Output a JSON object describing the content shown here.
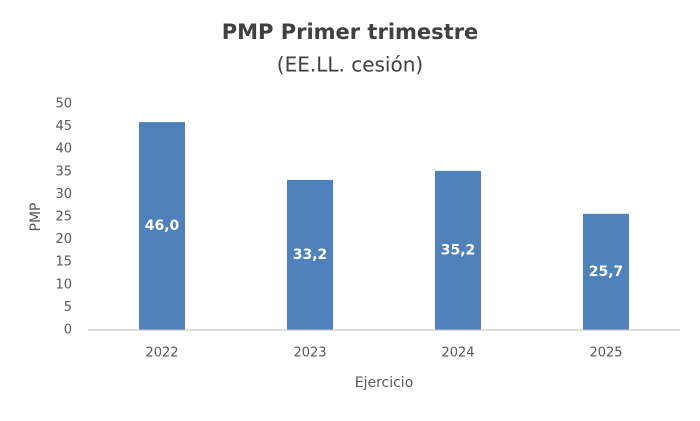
{
  "chart_data": {
    "type": "bar",
    "title": "PMP Primer trimestre",
    "subtitle": "(EE.LL. cesión)",
    "x_label": "Ejercicio",
    "y_label": "PMP",
    "categories": [
      "2022",
      "2023",
      "2024",
      "2025"
    ],
    "values": [
      46.0,
      33.2,
      35.2,
      25.7
    ],
    "value_labels": [
      "46,0",
      "33,2",
      "35,2",
      "25,7"
    ],
    "color": "#4f81bd",
    "ylim": [
      0,
      50
    ],
    "yticks": [
      0,
      5,
      10,
      15,
      20,
      25,
      30,
      35,
      40,
      45,
      50
    ],
    "grid": false
  }
}
